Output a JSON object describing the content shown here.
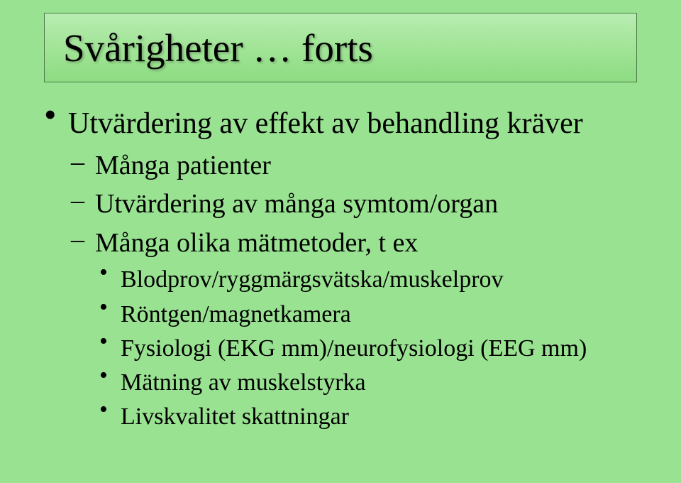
{
  "colors": {
    "background": "#99e291",
    "title_grad_top": "#b8edb2",
    "title_grad_mid": "#a6e69c",
    "title_grad_bot": "#8ddc82",
    "title_border": "#4d7a48",
    "text": "#000000"
  },
  "typography": {
    "family": "Times New Roman",
    "title_size_pt": 41,
    "lvl1_size_pt": 32,
    "lvl2_size_pt": 28,
    "lvl3_size_pt": 25
  },
  "title": "Svårigheter … forts",
  "bullets": {
    "lvl1": [
      {
        "text": "Utvärdering av effekt av behandling kräver",
        "children": [
          {
            "text": "Många patienter"
          },
          {
            "text": "Utvärdering av många symtom/organ"
          },
          {
            "text": "Många olika mätmetoder, t ex",
            "children": [
              {
                "text": "Blodprov/ryggmärgsvätska/muskelprov"
              },
              {
                "text": "Röntgen/magnetkamera"
              },
              {
                "text": "Fysiologi (EKG mm)/neurofysiologi (EEG mm)"
              },
              {
                "text": "Mätning av muskelstyrka"
              },
              {
                "text": "Livskvalitet skattningar"
              }
            ]
          }
        ]
      }
    ]
  }
}
